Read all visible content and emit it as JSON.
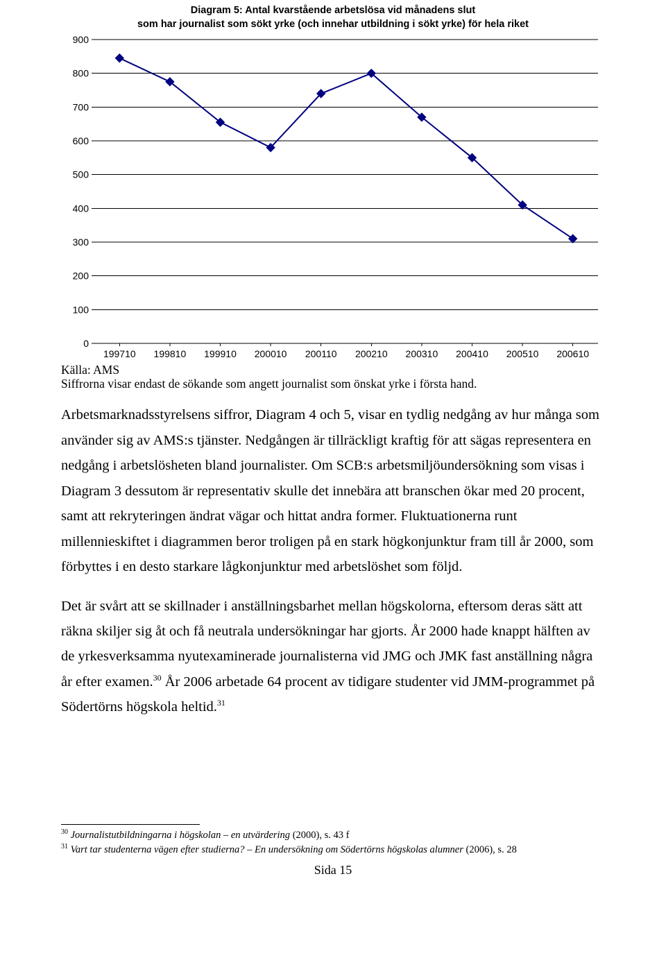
{
  "chart": {
    "title_line1": "Diagram 5: Antal kvarstående arbetslösa vid månadens slut",
    "title_line2": "som har journalist som sökt yrke (och innehar utbildning i sökt yrke) för hela riket",
    "type": "line",
    "categories": [
      "199710",
      "199810",
      "199910",
      "200010",
      "200110",
      "200210",
      "200310",
      "200410",
      "200510",
      "200610"
    ],
    "values": [
      845,
      775,
      655,
      580,
      740,
      800,
      670,
      550,
      410,
      310
    ],
    "ylim": [
      0,
      900
    ],
    "ytick_step": 100,
    "yticks": [
      "0",
      "100",
      "200",
      "300",
      "400",
      "500",
      "600",
      "700",
      "800",
      "900"
    ],
    "line_color": "#000080",
    "marker_color": "#000080",
    "marker_size": 6,
    "line_width": 2,
    "grid_color": "#000000",
    "background_color": "#ffffff",
    "tick_font_size": 14
  },
  "caption": "Källa: AMS",
  "note": "Siffrorna visar endast de sökande som angett journalist som önskat yrke i första hand.",
  "para1_part1": "Arbetsmarknadsstyrelsens siffror, Diagram 4 och 5, visar en tydlig nedgång av hur många som använder sig av AMS:s tjänster. Nedgången är tillräckligt kraftig för att sägas representera en nedgång i arbetslösheten bland journalister. Om SCB:s arbetsmiljöundersökning som visas i Diagram 3 dessutom är representativ skulle det innebära att branschen ökar med 20 procent, samt att rekryteringen ändrat vägar och hittat andra former. Fluktuationerna runt millennieskiftet i diagrammen beror troligen på en stark högkonjunktur fram till år 2000, som förbyttes i en desto starkare lågkonjunktur med arbetslöshet som följd.",
  "para2_part1": "Det är svårt att se skillnader i anställningsbarhet mellan högskolorna, eftersom deras sätt att räkna skiljer sig åt och få neutrala undersökningar har gjorts. År 2000 hade knappt hälften av de yrkesverksamma nyutexaminerade journalisterna vid JMG och JMK fast anställning några år efter examen.",
  "para2_sup1": "30",
  "para2_part2": " År 2006 arbetade 64 procent av tidigare studenter vid JMM-programmet på Södertörns högskola heltid.",
  "para2_sup2": "31",
  "footnotes": {
    "fn30_num": "30",
    "fn30_italic": "Journalistutbildningarna i högskolan – en utvärdering",
    "fn30_rest": " (2000), s. 43 f",
    "fn31_num": "31",
    "fn31_italic": "Vart tar studenterna vägen efter studierna? – En undersökning om Södertörns högskolas alumner",
    "fn31_rest": " (2006), s. 28"
  },
  "page_number": "Sida 15"
}
